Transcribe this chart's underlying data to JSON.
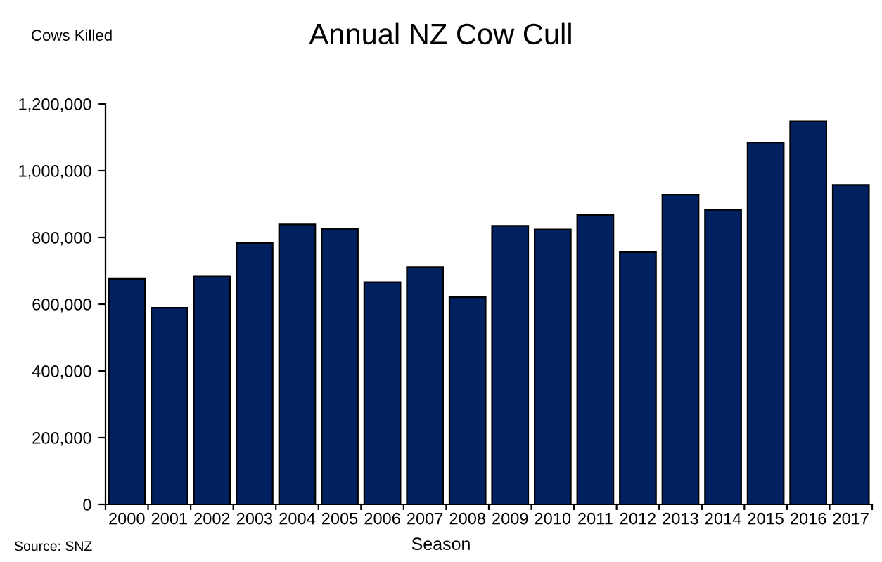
{
  "chart_data": {
    "type": "bar",
    "title": "Annual NZ Cow Cull",
    "ylabel": "Cows Killed",
    "xlabel": "Season",
    "categories": [
      "2000",
      "2001",
      "2002",
      "2003",
      "2004",
      "2005",
      "2006",
      "2007",
      "2008",
      "2009",
      "2010",
      "2011",
      "2012",
      "2013",
      "2014",
      "2015",
      "2016",
      "2017"
    ],
    "values": [
      676000,
      589000,
      683000,
      783000,
      839000,
      826000,
      666000,
      711000,
      621000,
      835000,
      824000,
      867000,
      756000,
      928000,
      883000,
      1084000,
      1148000,
      957000
    ],
    "color": "#012060",
    "ylim": [
      0,
      1200000
    ],
    "yticks": [
      {
        "value": 0,
        "label": "0"
      },
      {
        "value": 200000,
        "label": "200,000"
      },
      {
        "value": 400000,
        "label": "400,000"
      },
      {
        "value": 600000,
        "label": "600,000"
      },
      {
        "value": 800000,
        "label": "800,000"
      },
      {
        "value": 1000000,
        "label": "1,000,000"
      },
      {
        "value": 1200000,
        "label": "1,200,000"
      }
    ],
    "grid": false,
    "legend": false,
    "annotations": [
      "Source: SNZ"
    ]
  }
}
